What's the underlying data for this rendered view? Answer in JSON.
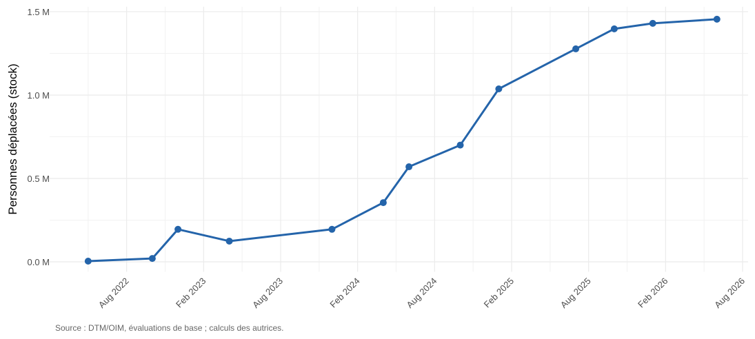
{
  "chart_data": {
    "type": "line",
    "y_label": "Personnes déplacées (stock)",
    "caption": "Source : DTM/OIM, évaluations de base ; calculs des autrices.",
    "x": [
      "2022-05",
      "2022-10",
      "2022-12",
      "2023-04",
      "2023-12",
      "2024-04",
      "2024-06",
      "2024-10",
      "2025-01",
      "2025-07",
      "2025-10",
      "2026-01",
      "2026-06"
    ],
    "series": [
      {
        "name": "Personnes déplacées",
        "color": "#2464aa",
        "values": [
          4000,
          20000,
          195000,
          124000,
          195000,
          355000,
          570000,
          700000,
          1037000,
          1277000,
          1397000,
          1430000,
          1455000
        ]
      }
    ],
    "xlim": [
      "2022-02",
      "2026-08"
    ],
    "xticks": [
      {
        "value": "2022-08",
        "label": "Aug 2022"
      },
      {
        "value": "2023-02",
        "label": "Feb 2023"
      },
      {
        "value": "2023-08",
        "label": "Aug 2023"
      },
      {
        "value": "2024-02",
        "label": "Feb 2024"
      },
      {
        "value": "2024-08",
        "label": "Aug 2024"
      },
      {
        "value": "2025-02",
        "label": "Feb 2025"
      },
      {
        "value": "2025-08",
        "label": "Aug 2025"
      },
      {
        "value": "2026-02",
        "label": "Feb 2026"
      },
      {
        "value": "2026-08",
        "label": "Aug 2026"
      }
    ],
    "ylim": [
      -60000,
      1530000
    ],
    "yticks": [
      {
        "value": 0,
        "label": "0.0 M"
      },
      {
        "value": 500000,
        "label": "0.5 M"
      },
      {
        "value": 1000000,
        "label": "1.0 M"
      },
      {
        "value": 1500000,
        "label": "1.5 M"
      }
    ],
    "grid": true
  }
}
